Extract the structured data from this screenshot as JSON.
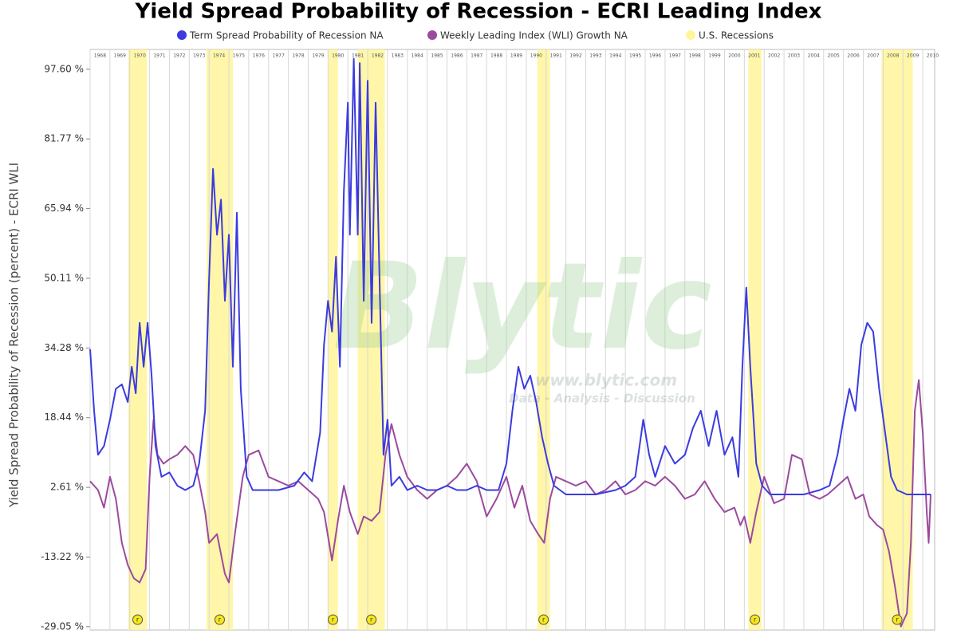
{
  "chart_data": {
    "type": "line",
    "title": "Yield Spread Probability of Recession - ECRI Leading Index",
    "y_label": "Yield Spread Probability of Recession (percent) - ECRI WLI",
    "watermark": {
      "brand": "Blytic",
      "url": "www.blytic.com",
      "tagline": "Data - Analysis - Discussion"
    },
    "xlim": [
      1968,
      2010.6
    ],
    "xticks": [
      1968,
      1969,
      1970,
      1971,
      1972,
      1973,
      1974,
      1975,
      1976,
      1977,
      1978,
      1979,
      1980,
      1981,
      1982,
      1983,
      1984,
      1985,
      1986,
      1987,
      1988,
      1989,
      1990,
      1991,
      1992,
      1993,
      1994,
      1995,
      1996,
      1997,
      1998,
      1999,
      2000,
      2001,
      2002,
      2003,
      2004,
      2005,
      2006,
      2007,
      2008,
      2009,
      2010
    ],
    "ylim": [
      -29.8,
      102.1
    ],
    "yticks": [
      {
        "value": -29.05,
        "label": "-29.05 %"
      },
      {
        "value": -13.22,
        "label": "-13.22 %"
      },
      {
        "value": 2.61,
        "label": "2.61 %"
      },
      {
        "value": 18.44,
        "label": "18.44 %"
      },
      {
        "value": 34.28,
        "label": "34.28 %"
      },
      {
        "value": 50.11,
        "label": "50.11 %"
      },
      {
        "value": 65.94,
        "label": "65.94 %"
      },
      {
        "value": 81.77,
        "label": "81.77 %"
      },
      {
        "value": 97.6,
        "label": "97.60 %"
      }
    ],
    "grid": true,
    "bands": {
      "name": "U.S. Recessions",
      "color": "#fff59a",
      "marker": "r",
      "ranges": [
        [
          1969.92,
          1970.87
        ],
        [
          1973.87,
          1975.2
        ],
        [
          1980.0,
          1980.5
        ],
        [
          1981.5,
          1982.87
        ],
        [
          1990.55,
          1991.2
        ],
        [
          2001.2,
          2001.87
        ],
        [
          2007.92,
          2009.5
        ]
      ]
    },
    "series": [
      {
        "name": "Term Spread Probability of Recession NA",
        "color": "#3b3be0",
        "x": [
          1968.0,
          1968.2,
          1968.4,
          1968.7,
          1969.0,
          1969.3,
          1969.6,
          1969.9,
          1970.1,
          1970.3,
          1970.5,
          1970.7,
          1970.9,
          1971.1,
          1971.3,
          1971.6,
          1972.0,
          1972.4,
          1972.8,
          1973.2,
          1973.5,
          1973.8,
          1974.0,
          1974.2,
          1974.4,
          1974.6,
          1974.8,
          1975.0,
          1975.2,
          1975.4,
          1975.6,
          1975.9,
          1976.2,
          1976.8,
          1977.5,
          1978.3,
          1978.8,
          1979.2,
          1979.6,
          1979.8,
          1980.0,
          1980.2,
          1980.4,
          1980.6,
          1980.8,
          1981.0,
          1981.1,
          1981.3,
          1981.5,
          1981.6,
          1981.8,
          1982.0,
          1982.2,
          1982.4,
          1982.6,
          1982.8,
          1983.0,
          1983.2,
          1983.6,
          1984.0,
          1984.5,
          1985.0,
          1985.5,
          1986.0,
          1986.5,
          1987.0,
          1987.5,
          1988.0,
          1988.6,
          1989.0,
          1989.3,
          1989.6,
          1989.9,
          1990.2,
          1990.5,
          1990.8,
          1991.1,
          1991.4,
          1992.0,
          1992.5,
          1993.5,
          1994.5,
          1995.0,
          1995.5,
          1995.9,
          1996.2,
          1996.5,
          1997.0,
          1997.5,
          1998.0,
          1998.4,
          1998.8,
          1999.2,
          1999.6,
          2000.0,
          2000.4,
          2000.7,
          2000.9,
          2001.1,
          2001.3,
          2001.6,
          2001.9,
          2002.3,
          2003.0,
          2004.0,
          2004.8,
          2005.3,
          2005.7,
          2006.0,
          2006.3,
          2006.6,
          2006.9,
          2007.2,
          2007.5,
          2007.8,
          2008.1,
          2008.4,
          2008.7,
          2009.2,
          2010.0,
          2010.4
        ],
        "values": [
          34,
          20,
          10,
          12,
          18,
          25,
          26,
          22,
          30,
          24,
          40,
          30,
          40,
          28,
          12,
          5,
          6,
          3,
          2,
          3,
          8,
          20,
          50,
          75,
          60,
          68,
          45,
          60,
          30,
          65,
          25,
          5,
          2,
          2,
          2,
          3,
          6,
          4,
          15,
          35,
          45,
          38,
          55,
          30,
          70,
          90,
          60,
          100,
          60,
          99,
          45,
          95,
          40,
          90,
          50,
          10,
          18,
          3,
          5,
          2,
          3,
          2,
          2,
          3,
          2,
          2,
          3,
          2,
          2,
          8,
          20,
          30,
          25,
          28,
          22,
          14,
          8,
          3,
          1,
          1,
          1,
          2,
          3,
          5,
          18,
          10,
          5,
          12,
          8,
          10,
          16,
          20,
          12,
          20,
          10,
          14,
          5,
          30,
          48,
          30,
          8,
          3,
          1,
          1,
          1,
          2,
          3,
          10,
          18,
          25,
          20,
          35,
          40,
          38,
          25,
          15,
          5,
          2,
          1,
          1,
          1
        ]
      },
      {
        "name": "Weekly Leading Index (WLI) Growth NA",
        "color": "#9b4a9e",
        "x": [
          1968.0,
          1968.4,
          1968.7,
          1969.0,
          1969.3,
          1969.6,
          1969.9,
          1970.2,
          1970.5,
          1970.8,
          1971.0,
          1971.2,
          1971.4,
          1971.7,
          1972.0,
          1972.4,
          1972.8,
          1973.2,
          1973.5,
          1973.8,
          1974.0,
          1974.4,
          1974.8,
          1975.0,
          1975.3,
          1975.7,
          1976.0,
          1976.5,
          1977.0,
          1977.5,
          1978.0,
          1978.5,
          1979.0,
          1979.5,
          1979.8,
          1980.2,
          1980.5,
          1980.8,
          1981.1,
          1981.5,
          1981.8,
          1982.2,
          1982.6,
          1982.9,
          1983.2,
          1983.6,
          1984.0,
          1984.5,
          1985.0,
          1985.5,
          1986.0,
          1986.5,
          1987.0,
          1987.5,
          1988.0,
          1988.5,
          1989.0,
          1989.4,
          1989.8,
          1990.2,
          1990.6,
          1990.9,
          1991.2,
          1991.5,
          1992.0,
          1992.5,
          1993.0,
          1993.5,
          1994.0,
          1994.5,
          1995.0,
          1995.5,
          1996.0,
          1996.5,
          1997.0,
          1997.5,
          1998.0,
          1998.5,
          1999.0,
          1999.5,
          2000.0,
          2000.5,
          2000.8,
          2001.0,
          2001.3,
          2001.6,
          2002.0,
          2002.5,
          2003.0,
          2003.4,
          2003.9,
          2004.3,
          2004.8,
          2005.2,
          2005.7,
          2006.2,
          2006.6,
          2007.0,
          2007.3,
          2007.7,
          2008.0,
          2008.3,
          2008.6,
          2008.9,
          2009.2,
          2009.4,
          2009.6,
          2009.8,
          2010.0,
          2010.2,
          2010.3,
          2010.4
        ],
        "values": [
          4,
          2,
          -2,
          5,
          0,
          -10,
          -15,
          -18,
          -19,
          -16,
          5,
          18,
          10,
          8,
          9,
          10,
          12,
          10,
          4,
          -3,
          -10,
          -8,
          -17,
          -19,
          -8,
          5,
          10,
          11,
          5,
          4,
          3,
          4,
          2,
          0,
          -3,
          -14,
          -5,
          3,
          -3,
          -8,
          -4,
          -5,
          -3,
          10,
          17,
          10,
          5,
          2,
          0,
          2,
          3,
          5,
          8,
          4,
          -4,
          0,
          5,
          -2,
          3,
          -5,
          -8,
          -10,
          0,
          5,
          4,
          3,
          4,
          1,
          2,
          4,
          1,
          2,
          4,
          3,
          5,
          3,
          0,
          1,
          4,
          0,
          -3,
          -2,
          -6,
          -4,
          -10,
          -3,
          5,
          -1,
          0,
          10,
          9,
          1,
          0,
          1,
          3,
          5,
          0,
          1,
          -4,
          -6,
          -7,
          -12,
          -20,
          -29,
          -26,
          -10,
          20,
          27,
          15,
          -3,
          -10,
          1
        ]
      }
    ]
  }
}
